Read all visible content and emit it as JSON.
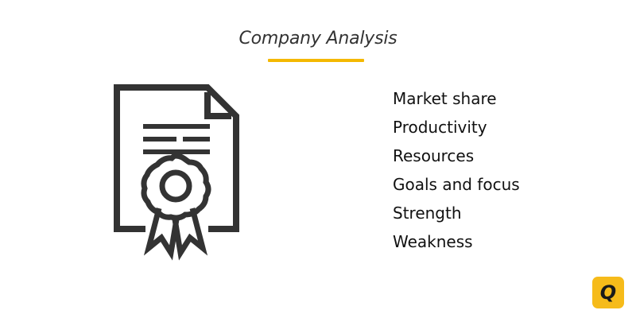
{
  "header": {
    "title": "Company Analysis",
    "underline_color": "#f4b800"
  },
  "illustration": {
    "icon": "certificate-document-icon",
    "stroke_color": "#333333"
  },
  "analysis_items": [
    "Market share",
    "Productivity",
    "Resources",
    "Goals and focus",
    "Strength",
    "Weakness"
  ],
  "logo": {
    "letter": "Q",
    "icon": "q-logo-icon",
    "background_color": "#f6bb1a"
  }
}
